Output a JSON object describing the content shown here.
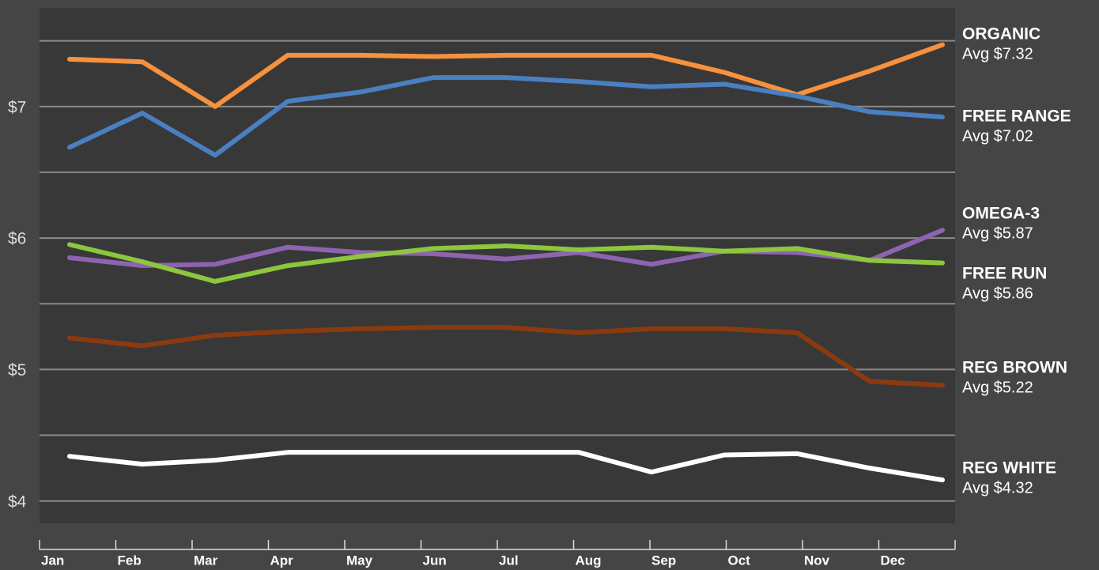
{
  "chart_data": {
    "type": "line",
    "categories": [
      "Jan",
      "Feb",
      "Mar",
      "Apr",
      "May",
      "Jun",
      "Jul",
      "Aug",
      "Sep",
      "Oct",
      "Nov",
      "Dec",
      null
    ],
    "series": [
      {
        "name": "ORGANIC",
        "annotation": "Avg $7.32",
        "color": "#f7913d",
        "values": [
          7.36,
          7.34,
          7.0,
          7.39,
          7.39,
          7.38,
          7.39,
          7.39,
          7.39,
          7.26,
          7.09,
          7.27,
          7.47
        ]
      },
      {
        "name": "FREE RANGE",
        "annotation": "Avg $7.02",
        "color": "#4a7fc1",
        "values": [
          6.69,
          6.95,
          6.63,
          7.04,
          7.11,
          7.22,
          7.22,
          7.19,
          7.15,
          7.17,
          7.08,
          6.96,
          6.92
        ]
      },
      {
        "name": "OMEGA-3",
        "annotation": "Avg $5.87",
        "color": "#8e63b0",
        "values": [
          5.85,
          5.79,
          5.8,
          5.93,
          5.89,
          5.88,
          5.84,
          5.89,
          5.8,
          5.9,
          5.89,
          5.83,
          6.06
        ]
      },
      {
        "name": "FREE RUN",
        "annotation": "Avg $5.86",
        "color": "#8dc63f",
        "values": [
          5.95,
          5.82,
          5.67,
          5.79,
          5.86,
          5.92,
          5.94,
          5.91,
          5.93,
          5.9,
          5.92,
          5.83,
          5.81
        ]
      },
      {
        "name": "REG BROWN",
        "annotation": "Avg $5.22",
        "color": "#8b3a0f",
        "values": [
          5.24,
          5.18,
          5.26,
          5.29,
          5.31,
          5.32,
          5.32,
          5.28,
          5.31,
          5.31,
          5.28,
          4.91,
          4.88
        ]
      },
      {
        "name": "REG WHITE",
        "annotation": "Avg $4.32",
        "color": "#ffffff",
        "values": [
          4.34,
          4.28,
          4.31,
          4.37,
          4.37,
          4.37,
          4.37,
          4.37,
          4.22,
          4.35,
          4.36,
          4.25,
          4.16
        ]
      }
    ],
    "ylim": [
      3.83,
      7.75
    ],
    "yticks": [
      {
        "value": 4,
        "label": "$4"
      },
      {
        "value": 5,
        "label": "$5"
      },
      {
        "value": 6,
        "label": "$6"
      },
      {
        "value": 7,
        "label": "$7"
      }
    ],
    "minor_yticks": [
      4.5,
      5.5,
      6.5,
      7.5
    ],
    "grid": true
  }
}
